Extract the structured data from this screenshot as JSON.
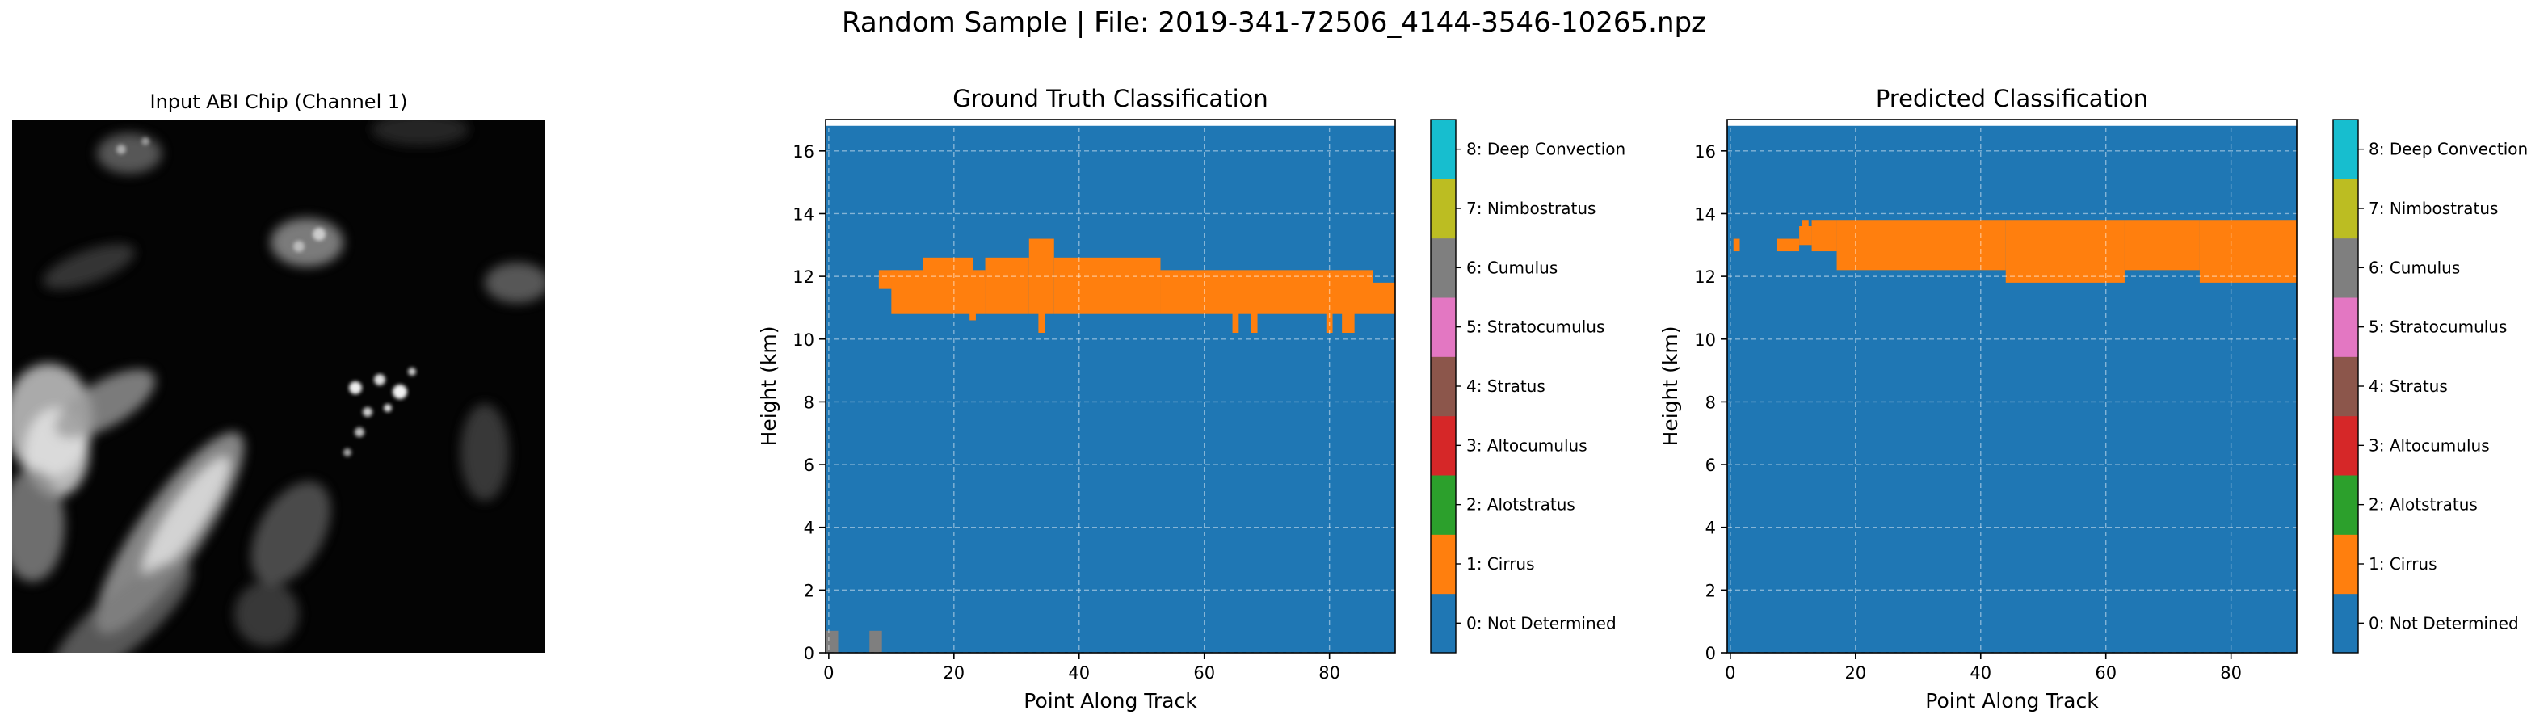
{
  "figure": {
    "suptitle": "Random Sample | File: 2019-341-72506_4144-3546-10265.npz"
  },
  "input_chip": {
    "title": "Input ABI Chip (Channel 1)"
  },
  "colorbar": {
    "classes": [
      {
        "label": "0: Not Determined",
        "color": "#1f77b4"
      },
      {
        "label": "1: Cirrus",
        "color": "#ff7f0e"
      },
      {
        "label": "2: Alotstratus",
        "color": "#2ca02c"
      },
      {
        "label": "3: Altocumulus",
        "color": "#d62728"
      },
      {
        "label": "4: Stratus",
        "color": "#8c564b"
      },
      {
        "label": "5: Stratocumulus",
        "color": "#e377c2"
      },
      {
        "label": "6: Cumulus",
        "color": "#7f7f7f"
      },
      {
        "label": "7: Nimbostratus",
        "color": "#bcbd22"
      },
      {
        "label": "8: Deep Convection",
        "color": "#17becf"
      }
    ]
  },
  "chart_data": [
    {
      "type": "heatmap",
      "title": "Ground Truth Classification",
      "xlabel": "Point Along Track",
      "ylabel": "Height (km)",
      "xlim": [
        -0.5,
        90.5
      ],
      "ylim": [
        0,
        17
      ],
      "xticks": [
        "0",
        "20",
        "40",
        "60",
        "80"
      ],
      "yticks": [
        "0",
        "2",
        "4",
        "6",
        "8",
        "10",
        "12",
        "14",
        "16"
      ],
      "grid": true,
      "background_class": 0,
      "regions": [
        {
          "class": 1,
          "x0": 8,
          "x1": 11,
          "y0": 11.6,
          "y1": 12.2
        },
        {
          "class": 1,
          "x0": 10,
          "x1": 15,
          "y0": 10.8,
          "y1": 12.2
        },
        {
          "class": 1,
          "x0": 15,
          "x1": 23,
          "y0": 10.8,
          "y1": 12.6
        },
        {
          "class": 1,
          "x0": 23,
          "x1": 25,
          "y0": 10.8,
          "y1": 12.2
        },
        {
          "class": 1,
          "x0": 25,
          "x1": 32,
          "y0": 10.8,
          "y1": 12.6
        },
        {
          "class": 1,
          "x0": 32,
          "x1": 36,
          "y0": 10.8,
          "y1": 13.2
        },
        {
          "class": 1,
          "x0": 36,
          "x1": 53,
          "y0": 10.8,
          "y1": 12.6
        },
        {
          "class": 1,
          "x0": 53,
          "x1": 87,
          "y0": 10.8,
          "y1": 12.2
        },
        {
          "class": 1,
          "x0": 87,
          "x1": 90.5,
          "y0": 10.8,
          "y1": 11.8
        },
        {
          "class": 1,
          "x0": 22.5,
          "x1": 23.5,
          "y0": 10.6,
          "y1": 10.9
        },
        {
          "class": 1,
          "x0": 33.5,
          "x1": 34.5,
          "y0": 10.2,
          "y1": 10.9
        },
        {
          "class": 1,
          "x0": 64.5,
          "x1": 65.5,
          "y0": 10.2,
          "y1": 10.9
        },
        {
          "class": 1,
          "x0": 67.5,
          "x1": 68.5,
          "y0": 10.2,
          "y1": 10.9
        },
        {
          "class": 1,
          "x0": 79.5,
          "x1": 80.5,
          "y0": 10.2,
          "y1": 10.9
        },
        {
          "class": 1,
          "x0": 82,
          "x1": 84,
          "y0": 10.2,
          "y1": 10.9
        },
        {
          "class": 6,
          "x0": -0.5,
          "x1": 1.5,
          "y0": 0,
          "y1": 0.7
        },
        {
          "class": 6,
          "x0": 6.5,
          "x1": 8.5,
          "y0": 0,
          "y1": 0.7
        }
      ]
    },
    {
      "type": "heatmap",
      "title": "Predicted Classification",
      "xlabel": "Point Along Track",
      "ylabel": "Height (km)",
      "xlim": [
        -0.5,
        90.5
      ],
      "ylim": [
        0,
        17
      ],
      "xticks": [
        "0",
        "20",
        "40",
        "60",
        "80"
      ],
      "yticks": [
        "0",
        "2",
        "4",
        "6",
        "8",
        "10",
        "12",
        "14",
        "16"
      ],
      "grid": true,
      "background_class": 0,
      "regions": [
        {
          "class": 1,
          "x0": 0.5,
          "x1": 1.5,
          "y0": 12.8,
          "y1": 13.2
        },
        {
          "class": 1,
          "x0": 7.5,
          "x1": 11,
          "y0": 12.8,
          "y1": 13.2
        },
        {
          "class": 1,
          "x0": 11,
          "x1": 13,
          "y0": 13.0,
          "y1": 13.6
        },
        {
          "class": 1,
          "x0": 11.5,
          "x1": 12.5,
          "y0": 13.6,
          "y1": 13.8
        },
        {
          "class": 1,
          "x0": 13,
          "x1": 17,
          "y0": 12.8,
          "y1": 13.8
        },
        {
          "class": 1,
          "x0": 17,
          "x1": 44,
          "y0": 12.2,
          "y1": 13.8
        },
        {
          "class": 1,
          "x0": 44,
          "x1": 63,
          "y0": 11.8,
          "y1": 13.8
        },
        {
          "class": 1,
          "x0": 63,
          "x1": 75,
          "y0": 12.2,
          "y1": 13.8
        },
        {
          "class": 1,
          "x0": 75,
          "x1": 90.5,
          "y0": 11.8,
          "y1": 13.8
        }
      ]
    }
  ]
}
